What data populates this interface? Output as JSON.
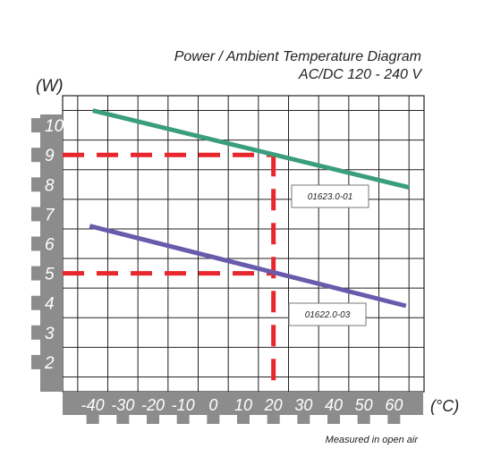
{
  "chart_data": {
    "type": "line",
    "title": "Power / Ambient Temperature Diagram",
    "subtitle": "AC/DC 120 - 240 V",
    "ylabel": "(W)",
    "xlabel": "(°C)",
    "xlim": [
      -50,
      70
    ],
    "ylim": [
      1,
      11
    ],
    "x_ticks": [
      -40,
      -30,
      -20,
      -10,
      0,
      10,
      20,
      30,
      40,
      50,
      60
    ],
    "x_tick_labels": [
      "-40",
      "-30",
      "-20",
      "-10",
      "0",
      "10",
      "20",
      "30",
      "40",
      "50",
      "60"
    ],
    "y_ticks": [
      2,
      3,
      4,
      5,
      6,
      7,
      8,
      9,
      10
    ],
    "y_tick_labels": [
      "2",
      "3",
      "4",
      "5",
      "6",
      "7",
      "8",
      "9",
      "10"
    ],
    "grid": true,
    "series": [
      {
        "name": "01623.0-01",
        "color": "#3a9e7c",
        "x": [
          -40,
          65
        ],
        "y": [
          10.5,
          7.9
        ]
      },
      {
        "name": "01622.0-03",
        "color": "#6a5aac",
        "x": [
          -41,
          64
        ],
        "y": [
          6.6,
          3.9
        ]
      }
    ],
    "reference_lines": {
      "color": "#e8262d",
      "vertical": [
        20
      ],
      "horizontal": [
        {
          "y": 9,
          "x_end": 20
        },
        {
          "y": 5,
          "x_end": 20
        }
      ]
    },
    "footnote": "Measured in open air"
  }
}
